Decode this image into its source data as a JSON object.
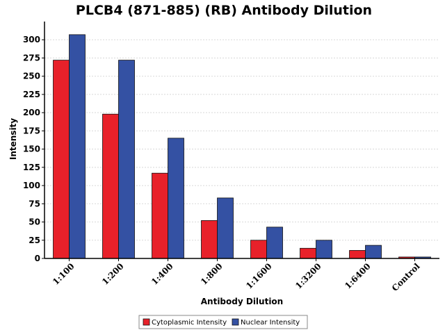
{
  "chart_data": {
    "type": "bar",
    "title": "PLCB4 (871-885) (RB) Antibody Dilution",
    "xlabel": "Antibody Dilution",
    "ylabel": "Intensity",
    "ylim": [
      0,
      325
    ],
    "yticks": [
      0,
      25,
      50,
      75,
      100,
      125,
      150,
      175,
      200,
      225,
      250,
      275,
      300
    ],
    "grid": true,
    "legend_position": "bottom",
    "categories": [
      "1:100",
      "1:200",
      "1:400",
      "1:800",
      "1:1600",
      "1:3200",
      "1:6400",
      "Control"
    ],
    "series": [
      {
        "name": "Cytoplasmic Intensity",
        "color": "#e8212a",
        "values": [
          272,
          198,
          117,
          52,
          25,
          14,
          11,
          2
        ]
      },
      {
        "name": "Nuclear Intensity",
        "color": "#3451a3",
        "values": [
          307,
          272,
          165,
          83,
          43,
          25,
          18,
          2
        ]
      }
    ]
  }
}
